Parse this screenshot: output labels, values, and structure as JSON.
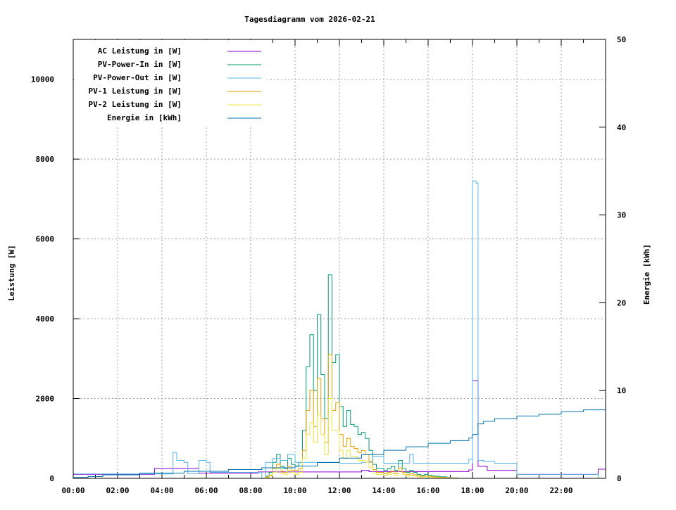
{
  "chart_data": {
    "type": "line",
    "title": "Tagesdiagramm vom 2026-02-21",
    "xlabel": "",
    "ylabel": "Leistung [W]",
    "y2label": "Energie [kWh]",
    "xlim": [
      "00:00",
      "24:00"
    ],
    "ylim": [
      0,
      11000
    ],
    "y2lim": [
      0,
      50
    ],
    "xticks": [
      "00:00",
      "02:00",
      "04:00",
      "06:00",
      "08:00",
      "10:00",
      "12:00",
      "14:00",
      "16:00",
      "18:00",
      "20:00",
      "22:00"
    ],
    "yticks": [
      0,
      2000,
      4000,
      6000,
      8000,
      10000
    ],
    "y2ticks": [
      0,
      10,
      20,
      30,
      40,
      50
    ],
    "grid": true,
    "legend_position": "top-left",
    "series": [
      {
        "name": "AC Leistung in [W]",
        "color": "#9400d3",
        "axis": "left",
        "points": [
          [
            "00:00",
            100
          ],
          [
            "03:40",
            100
          ],
          [
            "03:40",
            250
          ],
          [
            "05:40",
            250
          ],
          [
            "05:40",
            130
          ],
          [
            "08:20",
            130
          ],
          [
            "08:20",
            160
          ],
          [
            "13:00",
            160
          ],
          [
            "13:00",
            200
          ],
          [
            "13:20",
            200
          ],
          [
            "13:20",
            170
          ],
          [
            "17:50",
            170
          ],
          [
            "17:50",
            210
          ],
          [
            "18:00",
            210
          ],
          [
            "18:00",
            2450
          ],
          [
            "18:15",
            2450
          ],
          [
            "18:15",
            300
          ],
          [
            "18:40",
            300
          ],
          [
            "18:40",
            200
          ],
          [
            "20:00",
            200
          ],
          [
            "20:00",
            100
          ],
          [
            "23:40",
            100
          ],
          [
            "23:40",
            230
          ],
          [
            "24:00",
            230
          ]
        ]
      },
      {
        "name": "PV-Power-In in [W]",
        "color": "#009e73",
        "axis": "left",
        "points": [
          [
            "08:30",
            0
          ],
          [
            "08:40",
            50
          ],
          [
            "08:50",
            150
          ],
          [
            "09:00",
            400
          ],
          [
            "09:10",
            600
          ],
          [
            "09:20",
            300
          ],
          [
            "09:30",
            250
          ],
          [
            "09:40",
            500
          ],
          [
            "09:50",
            350
          ],
          [
            "10:00",
            300
          ],
          [
            "10:10",
            400
          ],
          [
            "10:20",
            1200
          ],
          [
            "10:30",
            2800
          ],
          [
            "10:40",
            3600
          ],
          [
            "10:50",
            2200
          ],
          [
            "11:00",
            4100
          ],
          [
            "11:10",
            2600
          ],
          [
            "11:20",
            1500
          ],
          [
            "11:30",
            5100
          ],
          [
            "11:40",
            2900
          ],
          [
            "11:50",
            3100
          ],
          [
            "12:00",
            1800
          ],
          [
            "12:10",
            1300
          ],
          [
            "12:20",
            1700
          ],
          [
            "12:30",
            1350
          ],
          [
            "12:40",
            1300
          ],
          [
            "12:50",
            1100
          ],
          [
            "13:00",
            1150
          ],
          [
            "13:10",
            1000
          ],
          [
            "13:20",
            700
          ],
          [
            "13:30",
            350
          ],
          [
            "13:40",
            250
          ],
          [
            "13:50",
            250
          ],
          [
            "14:00",
            200
          ],
          [
            "14:10",
            250
          ],
          [
            "14:20",
            300
          ],
          [
            "14:30",
            200
          ],
          [
            "14:40",
            450
          ],
          [
            "14:50",
            250
          ],
          [
            "15:00",
            150
          ],
          [
            "15:10",
            200
          ],
          [
            "15:20",
            150
          ],
          [
            "15:30",
            100
          ],
          [
            "15:40",
            80
          ],
          [
            "15:50",
            100
          ],
          [
            "16:00",
            80
          ],
          [
            "16:10",
            60
          ],
          [
            "16:20",
            50
          ],
          [
            "16:30",
            40
          ],
          [
            "16:40",
            40
          ],
          [
            "16:50",
            20
          ],
          [
            "17:00",
            10
          ],
          [
            "17:10",
            10
          ],
          [
            "17:20",
            0
          ],
          [
            "17:30",
            0
          ]
        ]
      },
      {
        "name": "PV-Power-Out in [W]",
        "color": "#56b4e9",
        "axis": "left",
        "points": [
          [
            "00:00",
            110
          ],
          [
            "04:30",
            110
          ],
          [
            "04:30",
            650
          ],
          [
            "04:40",
            450
          ],
          [
            "05:00",
            400
          ],
          [
            "05:10",
            120
          ],
          [
            "05:40",
            120
          ],
          [
            "05:40",
            450
          ],
          [
            "06:00",
            400
          ],
          [
            "06:10",
            150
          ],
          [
            "08:20",
            150
          ],
          [
            "08:30",
            0
          ],
          [
            "08:40",
            400
          ],
          [
            "09:00",
            500
          ],
          [
            "09:20",
            450
          ],
          [
            "09:40",
            600
          ],
          [
            "10:00",
            400
          ],
          [
            "12:00",
            380
          ],
          [
            "13:00",
            400
          ],
          [
            "13:30",
            550
          ],
          [
            "14:00",
            380
          ],
          [
            "15:00",
            380
          ],
          [
            "15:10",
            600
          ],
          [
            "15:20",
            380
          ],
          [
            "17:40",
            380
          ],
          [
            "17:50",
            480
          ],
          [
            "18:00",
            380
          ],
          [
            "18:00",
            7450
          ],
          [
            "18:10",
            7400
          ],
          [
            "18:15",
            7350
          ],
          [
            "18:15",
            450
          ],
          [
            "18:30",
            420
          ],
          [
            "19:00",
            380
          ],
          [
            "20:00",
            380
          ],
          [
            "20:00",
            100
          ],
          [
            "23:40",
            100
          ],
          [
            "23:40",
            0
          ],
          [
            "24:00",
            0
          ]
        ]
      },
      {
        "name": "PV-1 Leistung in [W]",
        "color": "#e69f00",
        "axis": "left",
        "points": [
          [
            "08:30",
            0
          ],
          [
            "08:40",
            30
          ],
          [
            "08:50",
            80
          ],
          [
            "09:00",
            250
          ],
          [
            "09:10",
            350
          ],
          [
            "09:20",
            180
          ],
          [
            "09:30",
            150
          ],
          [
            "09:40",
            300
          ],
          [
            "09:50",
            200
          ],
          [
            "10:00",
            200
          ],
          [
            "10:10",
            250
          ],
          [
            "10:20",
            700
          ],
          [
            "10:30",
            1700
          ],
          [
            "10:40",
            2200
          ],
          [
            "10:50",
            1300
          ],
          [
            "11:00",
            2500
          ],
          [
            "11:10",
            1500
          ],
          [
            "11:20",
            900
          ],
          [
            "11:30",
            3100
          ],
          [
            "11:40",
            1700
          ],
          [
            "11:50",
            1900
          ],
          [
            "12:00",
            1100
          ],
          [
            "12:10",
            800
          ],
          [
            "12:20",
            1000
          ],
          [
            "12:30",
            800
          ],
          [
            "12:40",
            750
          ],
          [
            "12:50",
            650
          ],
          [
            "13:00",
            700
          ],
          [
            "13:10",
            600
          ],
          [
            "13:20",
            420
          ],
          [
            "13:30",
            220
          ],
          [
            "13:40",
            150
          ],
          [
            "13:50",
            150
          ],
          [
            "14:00",
            120
          ],
          [
            "14:10",
            150
          ],
          [
            "14:20",
            180
          ],
          [
            "14:30",
            120
          ],
          [
            "14:40",
            260
          ],
          [
            "14:50",
            150
          ],
          [
            "15:00",
            90
          ],
          [
            "15:10",
            120
          ],
          [
            "15:20",
            90
          ],
          [
            "15:30",
            60
          ],
          [
            "15:40",
            50
          ],
          [
            "15:50",
            60
          ],
          [
            "16:00",
            50
          ],
          [
            "16:10",
            40
          ],
          [
            "16:20",
            30
          ],
          [
            "16:30",
            25
          ],
          [
            "16:40",
            25
          ],
          [
            "16:50",
            10
          ],
          [
            "17:00",
            5
          ],
          [
            "17:10",
            5
          ],
          [
            "17:20",
            0
          ],
          [
            "17:30",
            0
          ]
        ]
      },
      {
        "name": "PV-2 Leistung in [W]",
        "color": "#f0e442",
        "axis": "left",
        "points": [
          [
            "08:30",
            0
          ],
          [
            "08:40",
            20
          ],
          [
            "08:50",
            60
          ],
          [
            "09:00",
            150
          ],
          [
            "09:10",
            250
          ],
          [
            "09:20",
            120
          ],
          [
            "09:30",
            100
          ],
          [
            "09:40",
            200
          ],
          [
            "09:50",
            150
          ],
          [
            "10:00",
            100
          ],
          [
            "10:10",
            150
          ],
          [
            "10:20",
            500
          ],
          [
            "10:30",
            1100
          ],
          [
            "10:40",
            1400
          ],
          [
            "10:50",
            900
          ],
          [
            "11:00",
            1600
          ],
          [
            "11:10",
            1100
          ],
          [
            "11:20",
            600
          ],
          [
            "11:30",
            2000
          ],
          [
            "11:40",
            1200
          ],
          [
            "11:50",
            1200
          ],
          [
            "12:00",
            700
          ],
          [
            "12:10",
            500
          ],
          [
            "12:20",
            700
          ],
          [
            "12:30",
            550
          ],
          [
            "12:40",
            550
          ],
          [
            "12:50",
            450
          ],
          [
            "13:00",
            450
          ],
          [
            "13:10",
            400
          ],
          [
            "13:20",
            280
          ],
          [
            "13:30",
            130
          ],
          [
            "13:40",
            100
          ],
          [
            "13:50",
            100
          ],
          [
            "14:00",
            80
          ],
          [
            "14:10",
            100
          ],
          [
            "14:20",
            120
          ],
          [
            "14:30",
            80
          ],
          [
            "14:40",
            190
          ],
          [
            "14:50",
            100
          ],
          [
            "15:00",
            60
          ],
          [
            "15:10",
            80
          ],
          [
            "15:20",
            60
          ],
          [
            "15:30",
            40
          ],
          [
            "15:40",
            30
          ],
          [
            "15:50",
            40
          ],
          [
            "16:00",
            30
          ],
          [
            "16:10",
            20
          ],
          [
            "16:20",
            20
          ],
          [
            "16:30",
            15
          ],
          [
            "16:40",
            15
          ],
          [
            "16:50",
            10
          ],
          [
            "17:00",
            5
          ],
          [
            "17:10",
            5
          ],
          [
            "17:20",
            0
          ],
          [
            "17:30",
            0
          ]
        ]
      },
      {
        "name": "Energie in [kWh]",
        "color": "#0072b2",
        "axis": "right",
        "points": [
          [
            "00:00",
            0.1
          ],
          [
            "00:40",
            0.1
          ],
          [
            "00:40",
            0.2
          ],
          [
            "01:20",
            0.2
          ],
          [
            "01:20",
            0.4
          ],
          [
            "03:00",
            0.4
          ],
          [
            "03:00",
            0.6
          ],
          [
            "05:00",
            0.6
          ],
          [
            "05:00",
            0.8
          ],
          [
            "07:00",
            0.8
          ],
          [
            "07:00",
            1.0
          ],
          [
            "08:30",
            1.0
          ],
          [
            "08:30",
            1.2
          ],
          [
            "10:00",
            1.4
          ],
          [
            "11:00",
            1.8
          ],
          [
            "12:00",
            2.3
          ],
          [
            "13:00",
            2.7
          ],
          [
            "14:00",
            3.2
          ],
          [
            "15:00",
            3.6
          ],
          [
            "16:00",
            4.0
          ],
          [
            "17:00",
            4.3
          ],
          [
            "17:50",
            4.6
          ],
          [
            "18:00",
            5.0
          ],
          [
            "18:15",
            6.2
          ],
          [
            "18:30",
            6.5
          ],
          [
            "19:00",
            6.8
          ],
          [
            "20:00",
            7.1
          ],
          [
            "21:00",
            7.3
          ],
          [
            "22:00",
            7.6
          ],
          [
            "23:00",
            7.8
          ],
          [
            "24:00",
            7.9
          ]
        ]
      }
    ]
  }
}
